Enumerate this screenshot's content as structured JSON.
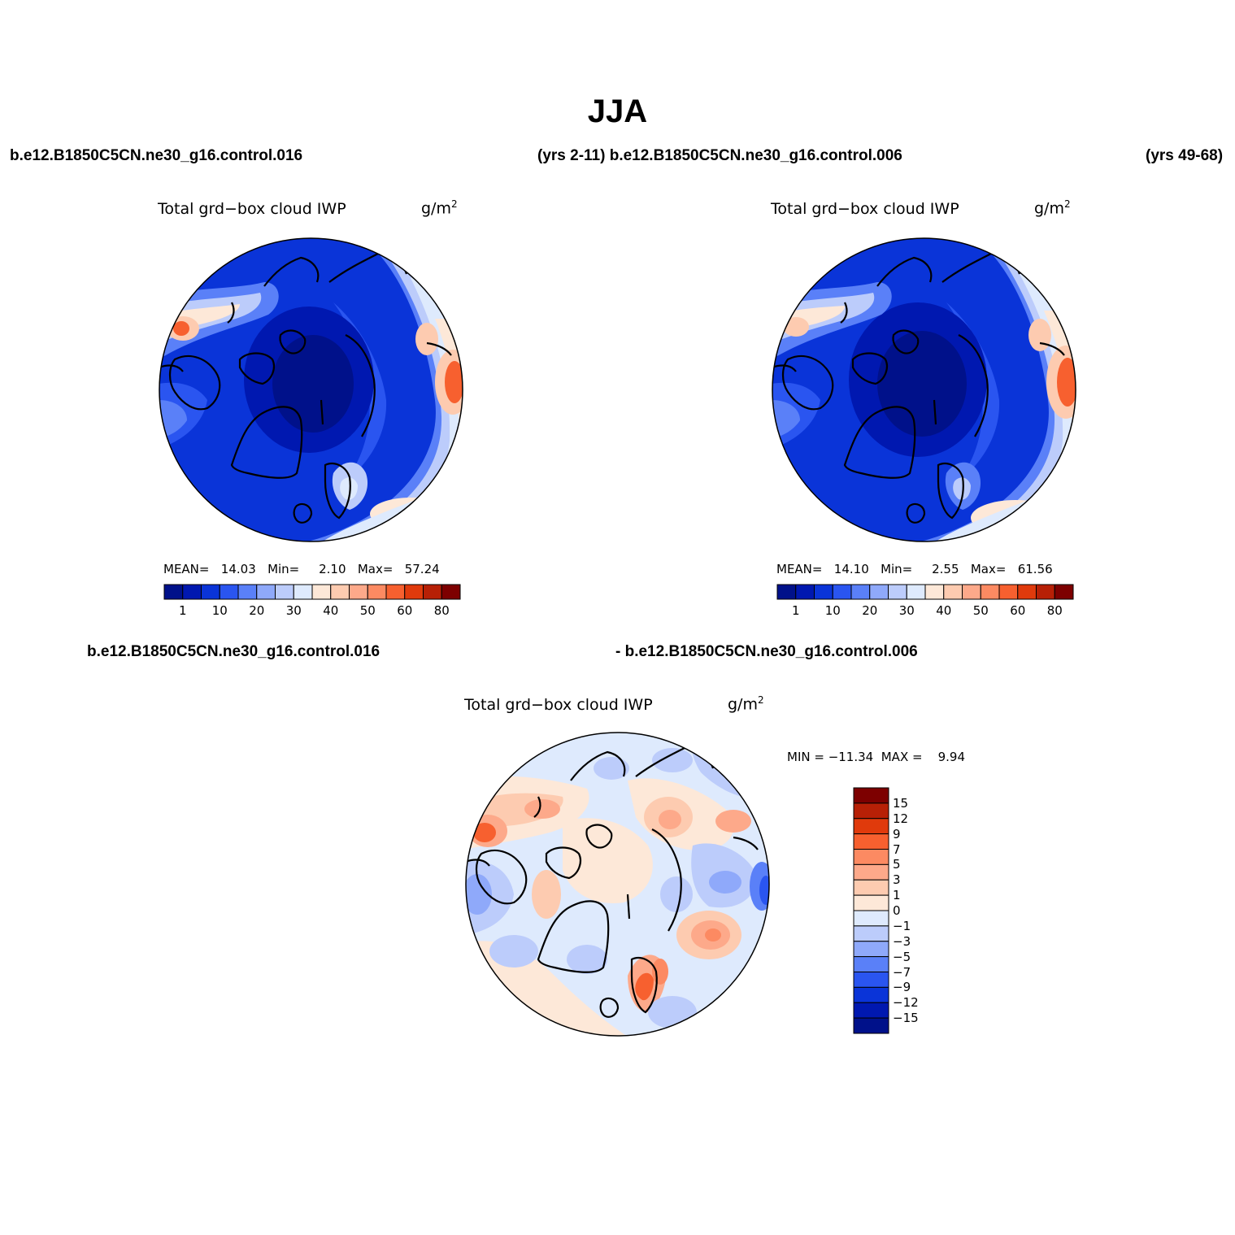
{
  "title": "JJA",
  "top_left_case": "b.e12.B1850C5CN.ne30_g16.control.016",
  "top_mid_text": "(yrs 2-11) b.e12.B1850C5CN.ne30_g16.control.006",
  "top_right_years": "(yrs 49-68)",
  "diff_case_a": "b.e12.B1850C5CN.ne30_g16.control.016",
  "diff_case_b": "- b.e12.B1850C5CN.ne30_g16.control.006",
  "panels": [
    {
      "variable": "Total grd−box cloud IWP",
      "units_base": "g/m",
      "units_sup": "2",
      "mean_label": "MEAN=",
      "mean": "14.03",
      "min_label": "Min=",
      "min": "2.10",
      "max_label": "Max=",
      "max": "57.24"
    },
    {
      "variable": "Total grd−box cloud IWP",
      "units_base": "g/m",
      "units_sup": "2",
      "mean_label": "MEAN=",
      "mean": "14.10",
      "min_label": "Min=",
      "min": "2.55",
      "max_label": "Max=",
      "max": "61.56"
    },
    {
      "variable": "Total grd−box cloud IWP",
      "units_base": "g/m",
      "units_sup": "2",
      "minmax_text": "MIN = −11.34  MAX =    9.94"
    }
  ],
  "colorbar_abs": {
    "colors": [
      "#00118a",
      "#0018b0",
      "#0a34d8",
      "#2a55f0",
      "#5a80f8",
      "#8fa9fa",
      "#bcccfb",
      "#deeafd",
      "#fde8d8",
      "#fdcbb0",
      "#fda98a",
      "#fc8a62",
      "#f7602f",
      "#e03a0c",
      "#b72006",
      "#7d0000"
    ],
    "labels": [
      "1",
      "10",
      "20",
      "30",
      "40",
      "50",
      "60",
      "80"
    ]
  },
  "colorbar_diff": {
    "colors_top_to_bottom": [
      "#7d0000",
      "#b72006",
      "#e03a0c",
      "#f7602f",
      "#fc8a62",
      "#fda98a",
      "#fdcbb0",
      "#fde8d8",
      "#deeafd",
      "#bcccfb",
      "#8fa9fa",
      "#5a80f8",
      "#2a55f0",
      "#0a34d8",
      "#0018b0",
      "#00118a"
    ],
    "labels": [
      "15",
      "12",
      "9",
      "7",
      "5",
      "3",
      "1",
      "0",
      "−1",
      "−3",
      "−5",
      "−7",
      "−9",
      "−12",
      "−15"
    ]
  }
}
